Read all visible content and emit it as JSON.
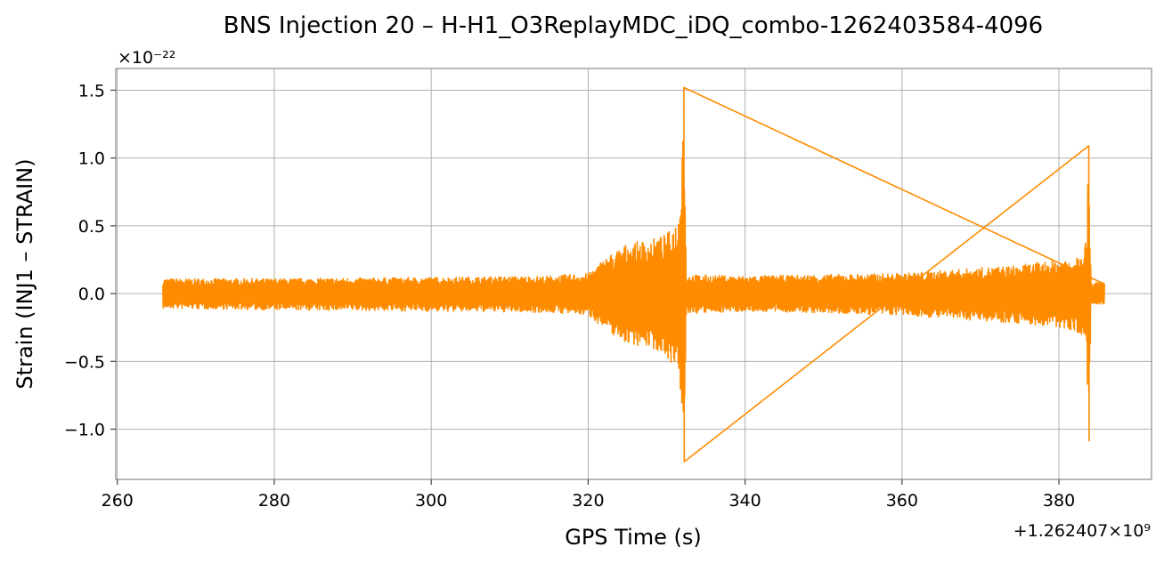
{
  "chart_data": {
    "type": "line",
    "title": "BNS Injection 20 – H-H1_O3ReplayMDC_iDQ_combo-1262403584-4096",
    "xlabel": "GPS Time (s)",
    "ylabel": "Strain (INJ1 – STRAIN)",
    "x_offset_label": "+1.262407×10⁹",
    "y_scale_label": "×10⁻²²",
    "xlim": [
      259.8,
      391.8
    ],
    "ylim": [
      -1.37,
      1.66
    ],
    "xticks": [
      260,
      280,
      300,
      320,
      340,
      360,
      380
    ],
    "yticks": [
      -1.0,
      -0.5,
      0.0,
      0.5,
      1.0,
      1.5
    ],
    "ytick_labels": [
      "−1.0",
      "−0.5",
      "0.0",
      "0.5",
      "1.0",
      "1.5"
    ],
    "grid": true,
    "color": "#ff8c00",
    "series": [
      {
        "name": "",
        "envelope": [
          {
            "x": 265.8,
            "upper": 0.11,
            "lower": -0.11
          },
          {
            "x": 280.0,
            "upper": 0.11,
            "lower": -0.12
          },
          {
            "x": 300.0,
            "upper": 0.12,
            "lower": -0.13
          },
          {
            "x": 315.0,
            "upper": 0.13,
            "lower": -0.14
          },
          {
            "x": 320.0,
            "upper": 0.15,
            "lower": -0.16
          },
          {
            "x": 322.5,
            "upper": 0.28,
            "lower": -0.28
          },
          {
            "x": 325.0,
            "upper": 0.37,
            "lower": -0.37
          },
          {
            "x": 328.0,
            "upper": 0.4,
            "lower": -0.4
          },
          {
            "x": 330.0,
            "upper": 0.44,
            "lower": -0.46
          },
          {
            "x": 331.5,
            "upper": 0.55,
            "lower": -0.6
          },
          {
            "x": 332.2,
            "upper": 1.52,
            "lower": -1.24
          },
          {
            "x": 332.5,
            "upper": 0.14,
            "lower": -0.15
          },
          {
            "x": 340.0,
            "upper": 0.13,
            "lower": -0.13
          },
          {
            "x": 360.0,
            "upper": 0.15,
            "lower": -0.16
          },
          {
            "x": 375.0,
            "upper": 0.21,
            "lower": -0.22
          },
          {
            "x": 382.0,
            "upper": 0.27,
            "lower": -0.27
          },
          {
            "x": 383.5,
            "upper": 0.4,
            "lower": -0.38
          },
          {
            "x": 383.8,
            "upper": 1.09,
            "lower": -1.09
          },
          {
            "x": 384.1,
            "upper": 0.08,
            "lower": -0.08
          },
          {
            "x": 385.8,
            "upper": 0.09,
            "lower": -0.09
          }
        ]
      }
    ]
  }
}
